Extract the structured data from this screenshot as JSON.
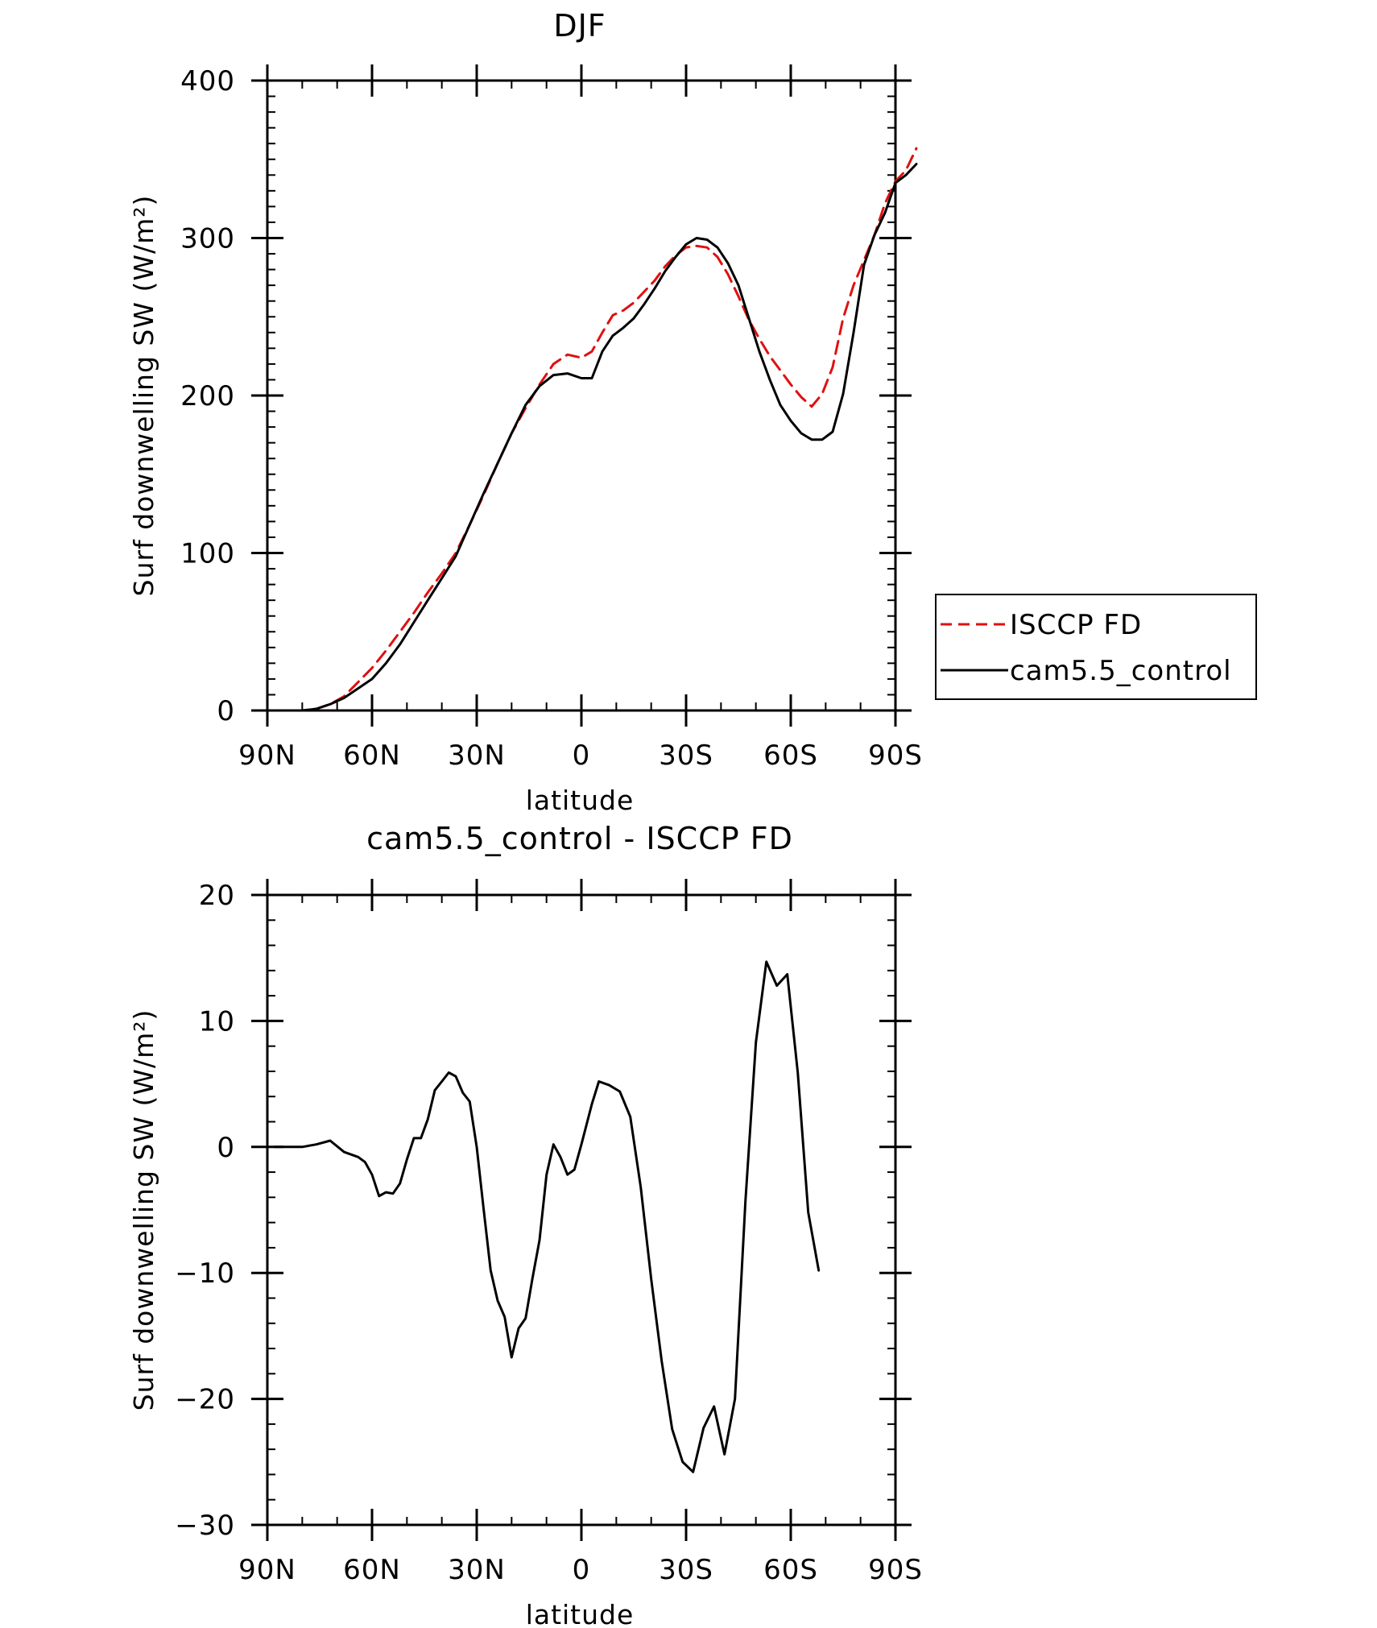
{
  "chart_data": [
    {
      "type": "line",
      "title": "DJF",
      "xlabel": "latitude",
      "ylabel": "Surf downwelling SW (W/m²)",
      "xlim": [
        90,
        -90
      ],
      "ylim": [
        0,
        400
      ],
      "x_ticks": [
        90,
        60,
        30,
        0,
        -30,
        -60,
        -90
      ],
      "x_tick_labels": [
        "90N",
        "60N",
        "30N",
        "0",
        "30S",
        "60S",
        "90S"
      ],
      "y_ticks": [
        0,
        100,
        200,
        300,
        400
      ],
      "y_tick_labels": [
        "0",
        "100",
        "200",
        "300",
        "400"
      ],
      "grid": false,
      "legend": "right",
      "series": [
        {
          "name": "ISCCP FD",
          "color": "#e01010",
          "style": "dashed",
          "points": [
            [
              88,
              0
            ],
            [
              84,
              0
            ],
            [
              80,
              0
            ],
            [
              76,
              1
            ],
            [
              72,
              4
            ],
            [
              68,
              9
            ],
            [
              64,
              18
            ],
            [
              60,
              27
            ],
            [
              56,
              38
            ],
            [
              52,
              50
            ],
            [
              48,
              62
            ],
            [
              44,
              75
            ],
            [
              40,
              87
            ],
            [
              36,
              100
            ],
            [
              32,
              118
            ],
            [
              28,
              137
            ],
            [
              24,
              157
            ],
            [
              20,
              176
            ],
            [
              16,
              192
            ],
            [
              12,
              207
            ],
            [
              8,
              220
            ],
            [
              4,
              226
            ],
            [
              0,
              224
            ],
            [
              -3,
              228
            ],
            [
              -6,
              240
            ],
            [
              -9,
              251
            ],
            [
              -12,
              254
            ],
            [
              -15,
              259
            ],
            [
              -18,
              266
            ],
            [
              -21,
              273
            ],
            [
              -24,
              282
            ],
            [
              -27,
              289
            ],
            [
              -30,
              294
            ],
            [
              -33,
              295
            ],
            [
              -36,
              294
            ],
            [
              -39,
              288
            ],
            [
              -42,
              277
            ],
            [
              -45,
              263
            ],
            [
              -48,
              248
            ],
            [
              -51,
              236
            ],
            [
              -54,
              225
            ],
            [
              -57,
              216
            ],
            [
              -60,
              207
            ],
            [
              -63,
              199
            ],
            [
              -66,
              193
            ],
            [
              -69,
              201
            ],
            [
              -72,
              218
            ],
            [
              -75,
              249
            ],
            [
              -78,
              270
            ],
            [
              -81,
              286
            ],
            [
              -84,
              302
            ],
            [
              -87,
              322
            ],
            [
              -90,
              336
            ],
            [
              -93,
              343
            ],
            [
              -96,
              357
            ]
          ]
        },
        {
          "name": "cam5.5_control",
          "color": "#000000",
          "style": "solid",
          "points": [
            [
              88,
              0
            ],
            [
              84,
              0
            ],
            [
              80,
              0
            ],
            [
              76,
              1
            ],
            [
              72,
              4
            ],
            [
              68,
              8
            ],
            [
              64,
              14
            ],
            [
              60,
              20
            ],
            [
              56,
              30
            ],
            [
              52,
              42
            ],
            [
              48,
              56
            ],
            [
              44,
              70
            ],
            [
              40,
              84
            ],
            [
              36,
              98
            ],
            [
              32,
              118
            ],
            [
              28,
              138
            ],
            [
              24,
              157
            ],
            [
              20,
              176
            ],
            [
              16,
              194
            ],
            [
              12,
              206
            ],
            [
              8,
              213
            ],
            [
              4,
              214
            ],
            [
              0,
              211
            ],
            [
              -3,
              211
            ],
            [
              -6,
              228
            ],
            [
              -9,
              238
            ],
            [
              -12,
              243
            ],
            [
              -15,
              249
            ],
            [
              -18,
              258
            ],
            [
              -21,
              268
            ],
            [
              -24,
              279
            ],
            [
              -27,
              288
            ],
            [
              -30,
              296
            ],
            [
              -33,
              300
            ],
            [
              -36,
              299
            ],
            [
              -39,
              294
            ],
            [
              -42,
              284
            ],
            [
              -45,
              270
            ],
            [
              -48,
              249
            ],
            [
              -51,
              228
            ],
            [
              -54,
              210
            ],
            [
              -57,
              194
            ],
            [
              -60,
              184
            ],
            [
              -63,
              176
            ],
            [
              -66,
              172
            ],
            [
              -69,
              172
            ],
            [
              -72,
              177
            ],
            [
              -75,
              201
            ],
            [
              -78,
              240
            ],
            [
              -81,
              283
            ],
            [
              -84,
              302
            ],
            [
              -87,
              316
            ],
            [
              -90,
              335
            ],
            [
              -93,
              340
            ],
            [
              -96,
              347
            ]
          ]
        }
      ]
    },
    {
      "type": "line",
      "title": "cam5.5_control - ISCCP FD",
      "xlabel": "latitude",
      "ylabel": "Surf downwelling SW (W/m²)",
      "xlim": [
        90,
        -90
      ],
      "ylim": [
        -30,
        20
      ],
      "x_ticks": [
        90,
        60,
        30,
        0,
        -30,
        -60,
        -90
      ],
      "x_tick_labels": [
        "90N",
        "60N",
        "30N",
        "0",
        "30S",
        "60S",
        "90S"
      ],
      "y_ticks": [
        -30,
        -20,
        -10,
        0,
        10,
        20
      ],
      "y_tick_labels": [
        "−30",
        "−20",
        "−10",
        "0",
        "10",
        "20"
      ],
      "grid": false,
      "series": [
        {
          "color": "#000000",
          "style": "solid",
          "points": [
            [
              88,
              0
            ],
            [
              80,
              0
            ],
            [
              76,
              0.2
            ],
            [
              72,
              0.5
            ],
            [
              68,
              -0.4
            ],
            [
              64,
              -0.8
            ],
            [
              62,
              -1.2
            ],
            [
              60,
              -2.2
            ],
            [
              58,
              -3.9
            ],
            [
              56,
              -3.6
            ],
            [
              54,
              -3.7
            ],
            [
              52,
              -2.9
            ],
            [
              50,
              -1.0
            ],
            [
              48,
              0.7
            ],
            [
              46,
              0.7
            ],
            [
              44,
              2.2
            ],
            [
              42,
              4.5
            ],
            [
              40,
              5.2
            ],
            [
              38,
              5.9
            ],
            [
              36,
              5.6
            ],
            [
              34,
              4.3
            ],
            [
              32,
              3.6
            ],
            [
              30,
              0
            ],
            [
              28,
              -5.0
            ],
            [
              26,
              -9.8
            ],
            [
              24,
              -12.2
            ],
            [
              22,
              -13.5
            ],
            [
              20,
              -16.7
            ],
            [
              18,
              -14.4
            ],
            [
              16,
              -13.6
            ],
            [
              14,
              -10.4
            ],
            [
              12,
              -7.4
            ],
            [
              10,
              -2.2
            ],
            [
              8,
              0.2
            ],
            [
              6,
              -0.8
            ],
            [
              4,
              -2.2
            ],
            [
              2,
              -1.8
            ],
            [
              0,
              0.2
            ],
            [
              -3,
              3.4
            ],
            [
              -5,
              5.2
            ],
            [
              -8,
              4.9
            ],
            [
              -11,
              4.4
            ],
            [
              -14,
              2.4
            ],
            [
              -17,
              -3.2
            ],
            [
              -20,
              -10.5
            ],
            [
              -23,
              -17.0
            ],
            [
              -26,
              -22.4
            ],
            [
              -29,
              -25.0
            ],
            [
              -32,
              -25.8
            ],
            [
              -35,
              -22.3
            ],
            [
              -38,
              -20.6
            ],
            [
              -41,
              -24.4
            ],
            [
              -44,
              -20.0
            ],
            [
              -47,
              -4.3
            ],
            [
              -50,
              8.3
            ],
            [
              -53,
              14.7
            ],
            [
              -56,
              12.8
            ],
            [
              -59,
              13.7
            ],
            [
              -62,
              5.9
            ],
            [
              -65,
              -5.2
            ],
            [
              -68,
              -9.8
            ]
          ]
        }
      ]
    }
  ]
}
